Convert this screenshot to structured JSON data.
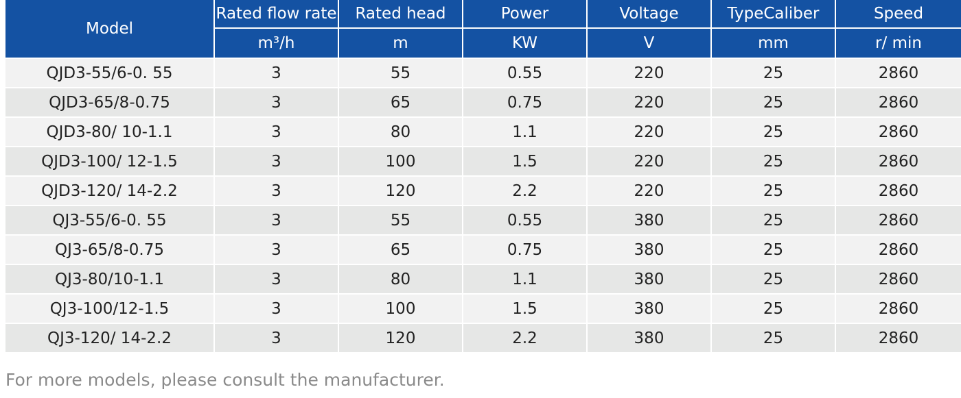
{
  "table": {
    "header_row1": [
      "Model",
      "Rated flow rate",
      "Rated head",
      "Power",
      "Voltage",
      "TypeCaliber",
      "Speed"
    ],
    "header_row2": [
      "m³/h",
      "m",
      "KW",
      "V",
      "mm",
      "r/ min"
    ],
    "rows": [
      [
        "QJD3-55/6-0. 55",
        "3",
        "55",
        "0.55",
        "220",
        "25",
        "2860"
      ],
      [
        "QJD3-65/8-0.75",
        "3",
        "65",
        "0.75",
        "220",
        "25",
        "2860"
      ],
      [
        "QJD3-80/ 10-1.1",
        "3",
        "80",
        "1.1",
        "220",
        "25",
        "2860"
      ],
      [
        "QJD3-100/ 12-1.5",
        "3",
        "100",
        "1.5",
        "220",
        "25",
        "2860"
      ],
      [
        "QJD3-120/ 14-2.2",
        "3",
        "120",
        "2.2",
        "220",
        "25",
        "2860"
      ],
      [
        "QJ3-55/6-0. 55",
        "3",
        "55",
        "0.55",
        "380",
        "25",
        "2860"
      ],
      [
        "QJ3-65/8-0.75",
        "3",
        "65",
        "0.75",
        "380",
        "25",
        "2860"
      ],
      [
        "QJ3-80/10-1.1",
        "3",
        "80",
        "1.1",
        "380",
        "25",
        "2860"
      ],
      [
        "QJ3-100/12-1.5",
        "3",
        "100",
        "1.5",
        "380",
        "25",
        "2860"
      ],
      [
        "QJ3-120/ 14-2.2",
        "3",
        "120",
        "2.2",
        "380",
        "25",
        "2860"
      ]
    ]
  },
  "footer_note": "For more models, please consult the manufacturer.",
  "colors": {
    "header_bg": "#1452a3",
    "row_light": "#f2f2f2",
    "row_dark": "#e6e7e6",
    "note_text": "#8a8a8a"
  }
}
